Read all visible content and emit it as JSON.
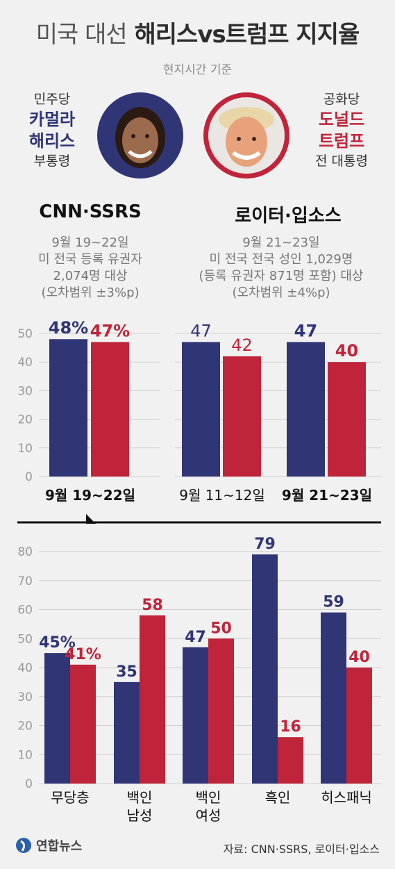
{
  "header": {
    "title_part1": "미국 대선",
    "title_part2": "해리스vs트럼프 지지율",
    "subtitle": "현지시간 기준"
  },
  "candidates": {
    "harris": {
      "party": "민주당",
      "name_line1": "카멀라",
      "name_line2": "해리스",
      "role": "부통령"
    },
    "trump": {
      "party": "공화당",
      "name_line1": "도널드",
      "name_line2": "트럼프",
      "role": "전 대통령"
    }
  },
  "polls": {
    "cnn": {
      "title": "CNN·SSRS",
      "desc": [
        "9월 19~22일",
        "미 전국 등록 유권자",
        "2,074명 대상",
        "(오차범위 ±3%p)"
      ]
    },
    "reuters": {
      "title": "로이터·입소스",
      "desc": [
        "9월 21~23일",
        "미 전국 전국 성인 1,029명",
        "(등록 유권자 871명 포함) 대상",
        "(오차범위 ±4%p)"
      ]
    }
  },
  "colors": {
    "harris": "#2f3575",
    "trump": "#c0243a",
    "bg": "#f1f1f1"
  },
  "chart_data": [
    {
      "type": "bar",
      "poll": "CNN·SSRS",
      "categories": [
        "9월 19~22일"
      ],
      "series": [
        {
          "name": "해리스",
          "values": [
            48
          ],
          "labels": [
            "48%"
          ]
        },
        {
          "name": "트럼프",
          "values": [
            47
          ],
          "labels": [
            "47%"
          ]
        }
      ],
      "ylim": [
        0,
        50
      ],
      "yticks": [
        0,
        10,
        20,
        30,
        40,
        50
      ],
      "grid": true
    },
    {
      "type": "bar",
      "poll": "로이터·입소스",
      "categories": [
        "9월 11~12일",
        "9월 21~23일"
      ],
      "series": [
        {
          "name": "해리스",
          "values": [
            47,
            47
          ],
          "labels": [
            "47",
            "47"
          ]
        },
        {
          "name": "트럼프",
          "values": [
            42,
            40
          ],
          "labels": [
            "42",
            "40"
          ]
        }
      ],
      "ylim": [
        0,
        50
      ],
      "grid": true
    },
    {
      "type": "bar",
      "poll": "CNN·SSRS 9월 19~22일",
      "categories": [
        "무당층",
        "백인\n남성",
        "백인\n여성",
        "흑인",
        "히스패닉"
      ],
      "series": [
        {
          "name": "해리스",
          "values": [
            45,
            35,
            47,
            79,
            59
          ],
          "labels": [
            "45%",
            "35",
            "47",
            "79",
            "59"
          ]
        },
        {
          "name": "트럼프",
          "values": [
            41,
            58,
            50,
            16,
            40
          ],
          "labels": [
            "41%",
            "58",
            "50",
            "16",
            "40"
          ]
        }
      ],
      "ylim": [
        0,
        80
      ],
      "yticks": [
        0,
        10,
        20,
        30,
        40,
        50,
        60,
        70,
        80
      ],
      "grid": true
    }
  ],
  "footer": {
    "logo": "연합뉴스",
    "source": "자료: CNN·SSRS, 로이터·입소스"
  }
}
